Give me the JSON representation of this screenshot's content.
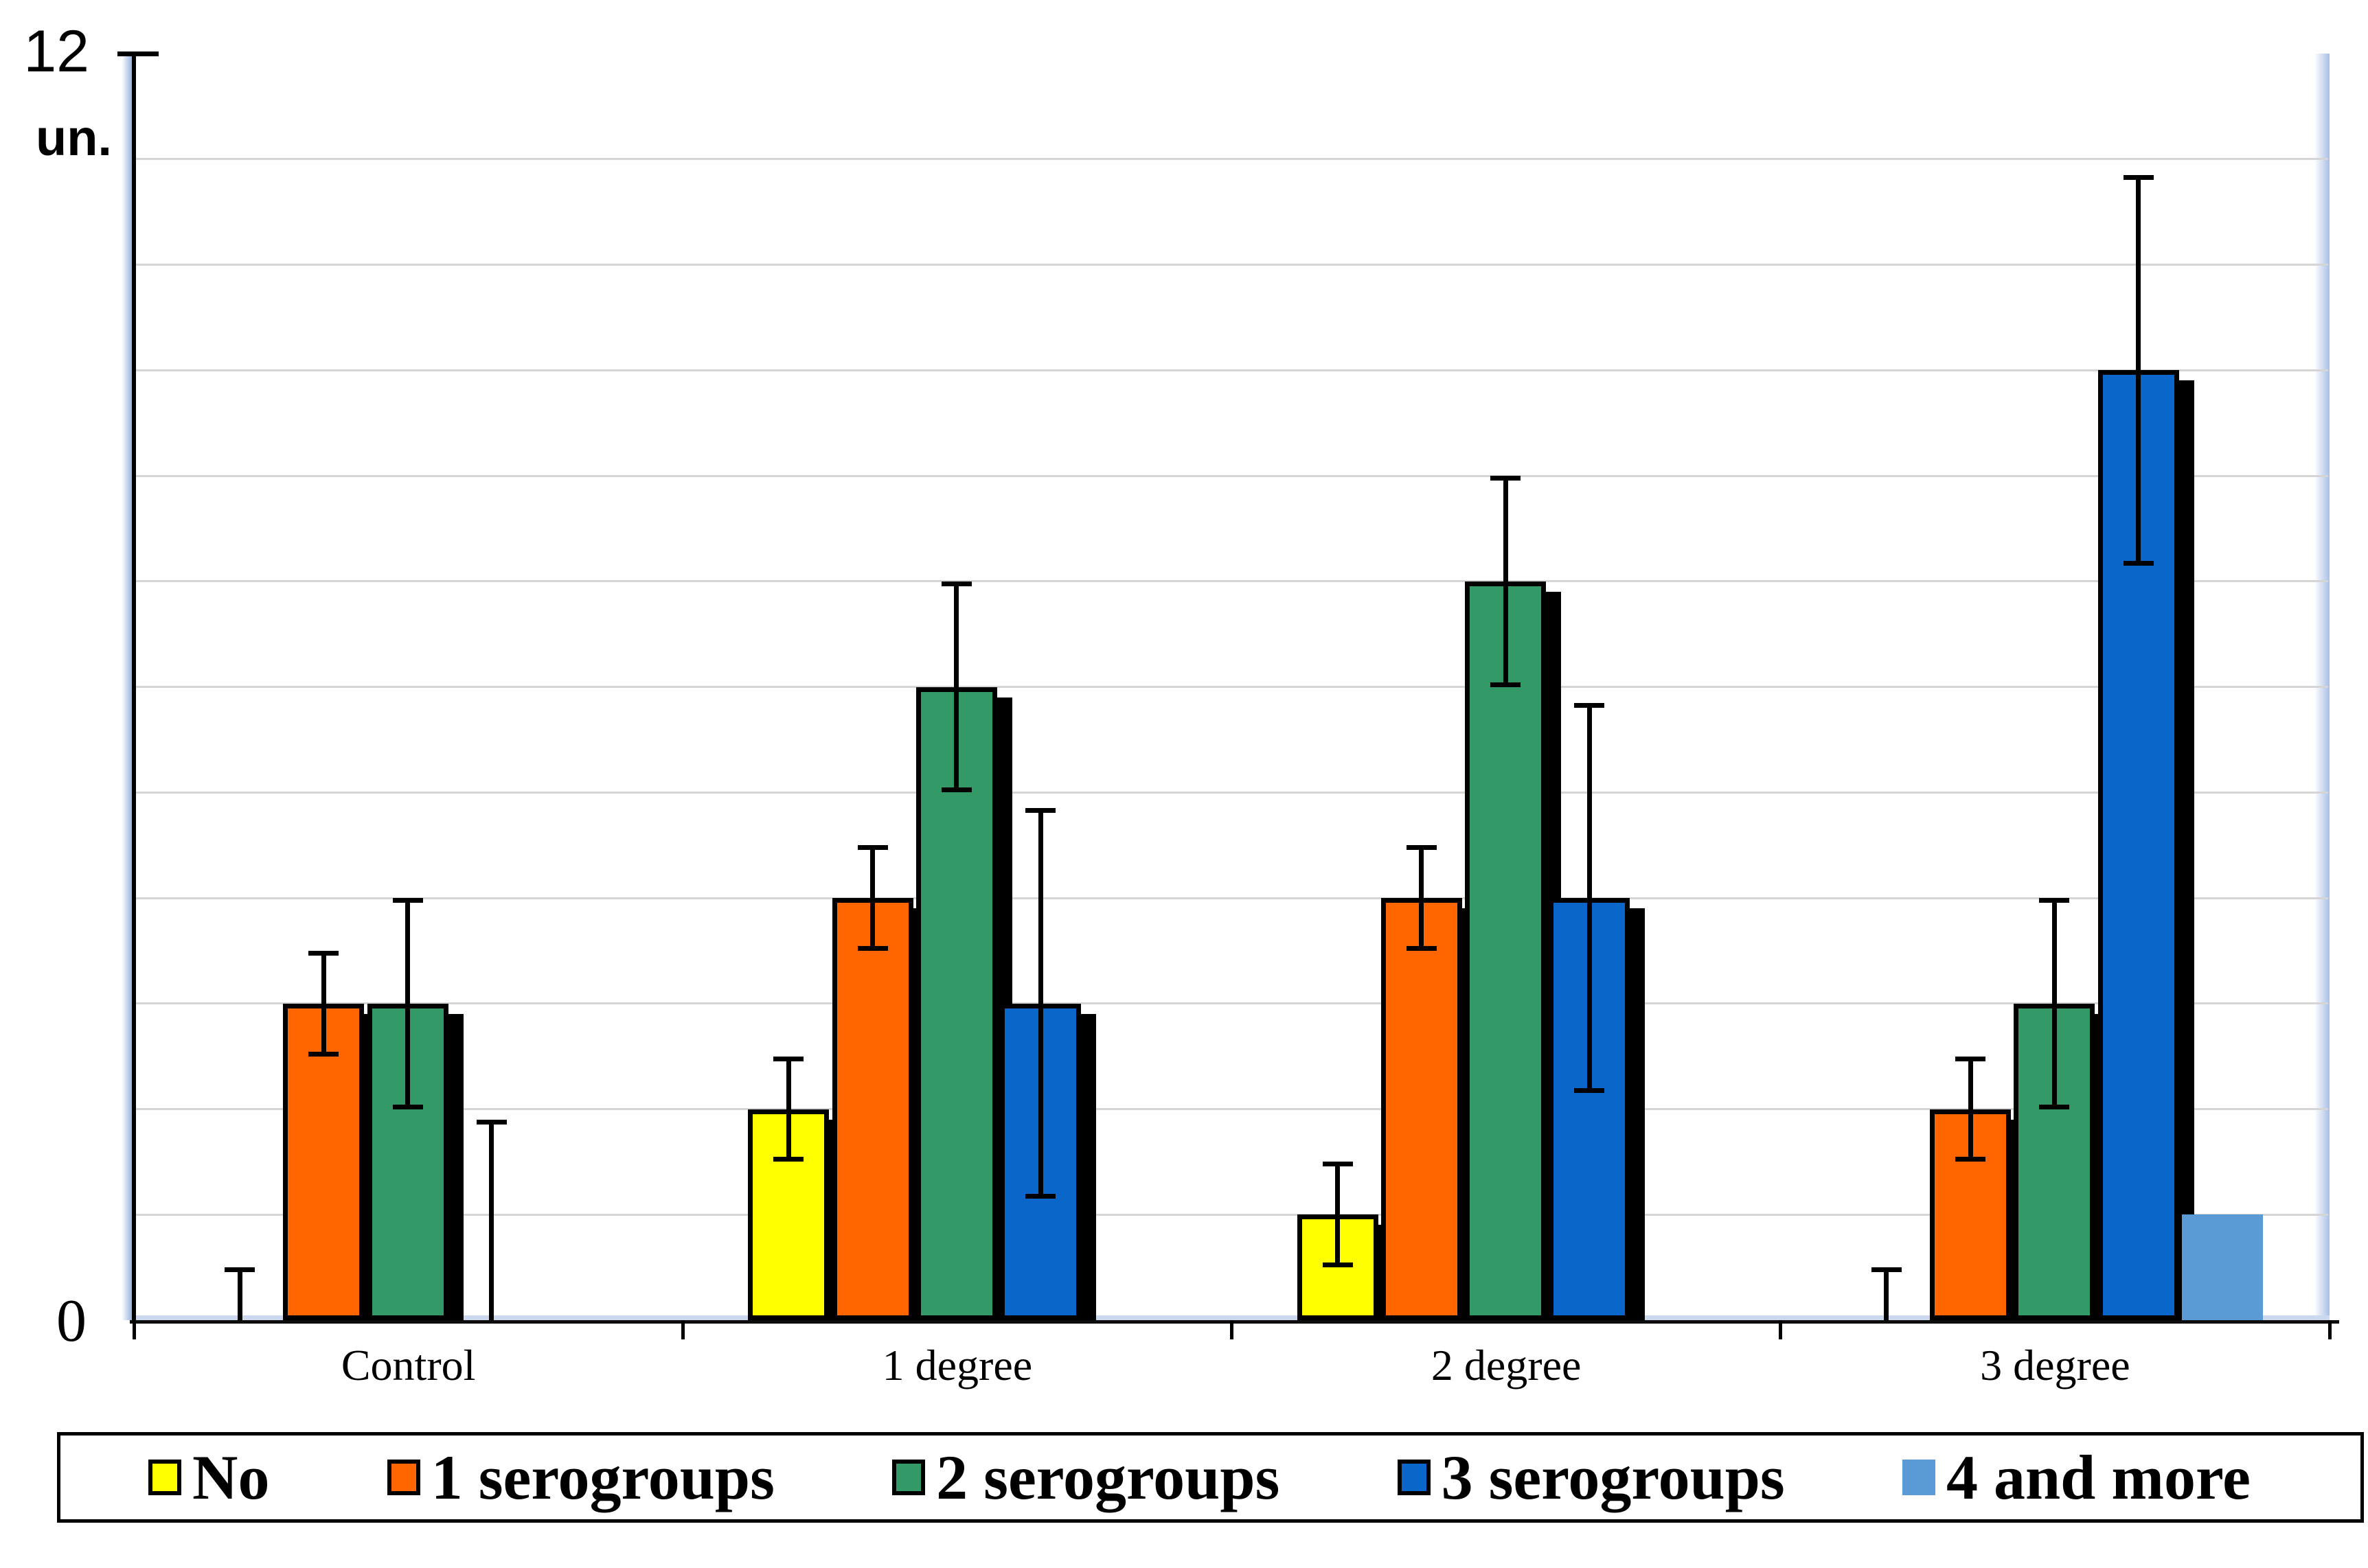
{
  "axis": {
    "max_label": "12",
    "unit_label": "un.",
    "zero_label": "0"
  },
  "chart_data": {
    "type": "bar",
    "title": "",
    "ylabel": "un.",
    "ylim": [
      0,
      12
    ],
    "gridline_step": 1,
    "grid": "horizontal gridlines every 1 unit, no labels between 0 and 12",
    "legend_position": "bottom",
    "error_bars": "black whiskers with caps; one-sided upward when bar value is 0",
    "categories": [
      "Control",
      "1 degree",
      "2 degree",
      "3 degree"
    ],
    "series": [
      {
        "name": "No",
        "color": "#FFFF00",
        "swatch_border": true,
        "values": [
          0,
          2,
          1,
          0
        ],
        "errors": [
          0.5,
          0.5,
          0.5,
          0.5
        ]
      },
      {
        "name": "1 serogroups",
        "color": "#FF6600",
        "swatch_border": true,
        "values": [
          3,
          4,
          4,
          2
        ],
        "errors": [
          0.5,
          0.5,
          0.5,
          0.5
        ]
      },
      {
        "name": "2 serogroups",
        "color": "#339966",
        "swatch_border": true,
        "values": [
          3,
          6,
          7,
          3
        ],
        "errors": [
          1,
          1,
          1,
          1
        ]
      },
      {
        "name": "3 serogroups",
        "color": "#0A66C8",
        "swatch_border": true,
        "values": [
          0,
          3,
          4,
          9
        ],
        "errors": [
          1.9,
          1.85,
          1.85,
          1.85
        ]
      },
      {
        "name": "4 and more",
        "color": "#5B9BD5",
        "swatch_border": false,
        "values": [
          0,
          0,
          0,
          1
        ],
        "errors": [
          null,
          null,
          null,
          null
        ]
      }
    ]
  }
}
